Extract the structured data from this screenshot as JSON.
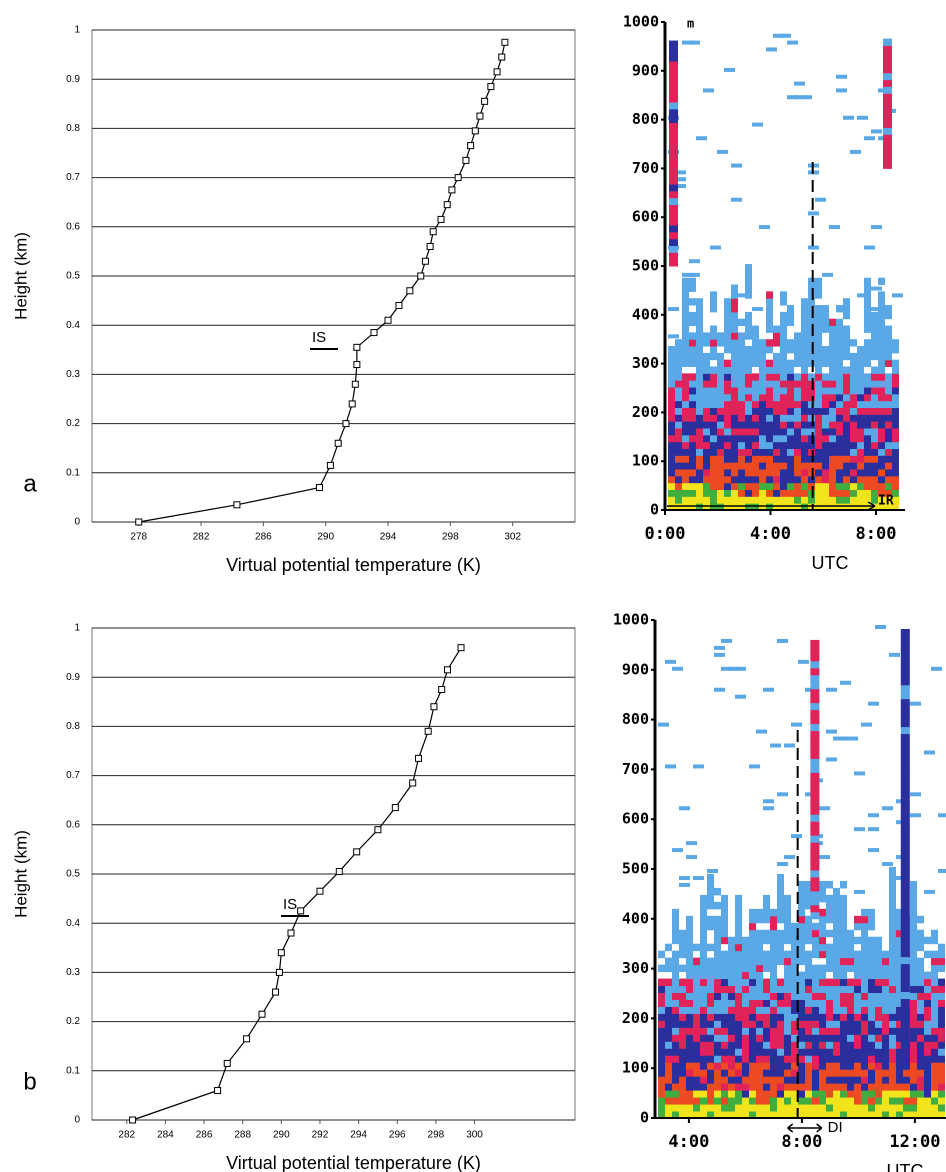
{
  "chart_data": [
    {
      "type": "line",
      "panel_label": "a",
      "annotation": "IS",
      "x_label": "Virtual potential temperature (K)",
      "y_label": "Height (km)",
      "x": [
        278.0,
        284.3,
        289.6,
        290.3,
        290.8,
        291.3,
        291.7,
        291.9,
        292.0,
        292.0,
        293.1,
        294.0,
        294.7,
        295.4,
        296.1,
        296.4,
        296.7,
        296.9,
        297.4,
        297.8,
        298.1,
        298.5,
        299.0,
        299.3,
        299.6,
        299.9,
        300.2,
        300.6,
        301.0,
        301.3,
        301.5
      ],
      "values": [
        0,
        0.035,
        0.07,
        0.115,
        0.16,
        0.2,
        0.24,
        0.28,
        0.32,
        0.355,
        0.385,
        0.41,
        0.44,
        0.47,
        0.5,
        0.53,
        0.56,
        0.59,
        0.615,
        0.645,
        0.675,
        0.7,
        0.735,
        0.765,
        0.795,
        0.825,
        0.855,
        0.885,
        0.915,
        0.945,
        0.975
      ],
      "color": "#000000",
      "xlim": [
        275,
        306
      ],
      "ylim": [
        0,
        1
      ],
      "xticks": [
        278,
        282,
        286,
        290,
        294,
        298,
        302
      ],
      "yticks": [
        0,
        0.1,
        0.2,
        0.3,
        0.4,
        0.5,
        0.6,
        0.7,
        0.8,
        0.9,
        1
      ],
      "grid": true
    },
    {
      "type": "heatmap",
      "annotation": "IR",
      "unit": "m",
      "x_label": "UTC",
      "xlim": [
        0,
        9.1
      ],
      "ylim": [
        0,
        1000
      ],
      "xticks": [
        {
          "value": 0,
          "label": "0:00"
        },
        {
          "value": 4,
          "label": "4:00"
        },
        {
          "value": 8,
          "label": "8:00"
        }
      ],
      "yticks": [
        0,
        100,
        200,
        300,
        400,
        500,
        600,
        700,
        800,
        900,
        1000
      ]
    },
    {
      "type": "line",
      "panel_label": "b",
      "annotation": "IS",
      "x_label": "Virtual potential temperature (K)",
      "y_label": "Height (km)",
      "x": [
        282.3,
        286.7,
        287.2,
        288.2,
        289.0,
        289.7,
        289.9,
        290.0,
        290.5,
        291.0,
        292.0,
        293.0,
        293.9,
        295.0,
        295.9,
        296.8,
        297.1,
        297.6,
        297.9,
        298.3,
        298.6,
        299.3
      ],
      "values": [
        0,
        0.06,
        0.115,
        0.165,
        0.215,
        0.26,
        0.3,
        0.34,
        0.38,
        0.425,
        0.465,
        0.505,
        0.545,
        0.59,
        0.635,
        0.685,
        0.735,
        0.79,
        0.84,
        0.875,
        0.915,
        0.96
      ],
      "color": "#000000",
      "xlim": [
        280.2,
        305.2
      ],
      "ylim": [
        0,
        1
      ],
      "xticks": [
        282,
        284,
        286,
        288,
        290,
        292,
        294,
        296,
        298,
        300
      ],
      "yticks": [
        0,
        0.1,
        0.2,
        0.3,
        0.4,
        0.5,
        0.6,
        0.7,
        0.8,
        0.9,
        1
      ],
      "grid": true
    },
    {
      "type": "heatmap",
      "annotation": "DI",
      "x_label": "UTC",
      "xlim": [
        2.8,
        13.1
      ],
      "ylim": [
        0,
        1000
      ],
      "xticks": [
        {
          "value": 4,
          "label": "4:00"
        },
        {
          "value": 8,
          "label": "8:00"
        },
        {
          "value": 12,
          "label": "12:00"
        }
      ],
      "yticks": [
        0,
        100,
        200,
        300,
        400,
        500,
        600,
        700,
        800,
        900,
        1000
      ]
    }
  ]
}
